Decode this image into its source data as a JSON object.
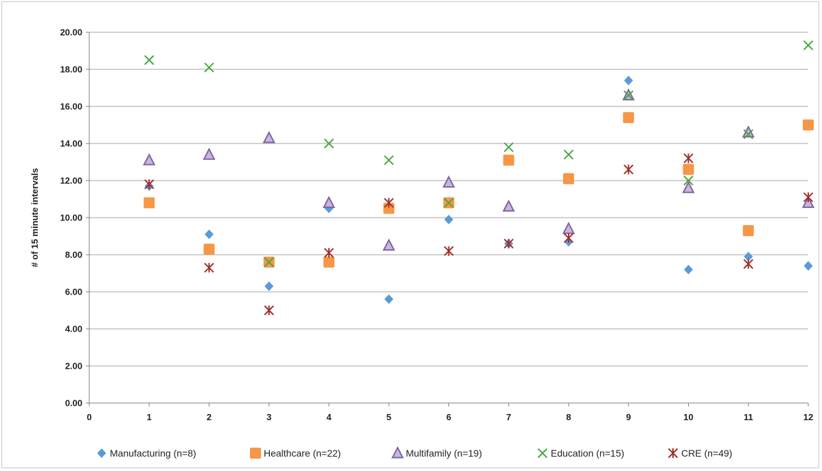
{
  "chart_data": {
    "type": "scatter",
    "title": "",
    "xlabel": "",
    "ylabel": "# of 15 minute intervals",
    "xlim": [
      0,
      12
    ],
    "ylim": [
      0,
      20
    ],
    "x_ticks": [
      "0",
      "1",
      "2",
      "3",
      "4",
      "5",
      "6",
      "7",
      "8",
      "9",
      "10",
      "11",
      "12"
    ],
    "y_ticks": [
      "0.00",
      "2.00",
      "4.00",
      "6.00",
      "8.00",
      "10.00",
      "12.00",
      "14.00",
      "16.00",
      "18.00",
      "20.00"
    ],
    "grid": "horizontal",
    "legend_position": "bottom",
    "x": [
      1,
      2,
      3,
      4,
      5,
      6,
      7,
      8,
      9,
      10,
      11,
      12
    ],
    "series": [
      {
        "name": "Manufacturing (n=8)",
        "marker": "diamond",
        "color": "#5b9bd5",
        "values": [
          11.7,
          9.1,
          6.3,
          10.5,
          5.6,
          9.9,
          8.6,
          8.7,
          17.4,
          7.2,
          7.9,
          7.4
        ]
      },
      {
        "name": "Healthcare (n=22)",
        "marker": "square",
        "color": "#f79646",
        "values": [
          10.8,
          8.3,
          7.6,
          7.6,
          10.5,
          10.8,
          13.1,
          12.1,
          15.4,
          12.6,
          9.3,
          15.0
        ]
      },
      {
        "name": "Multifamily (n=19)",
        "marker": "triangle",
        "color": "#8064a2",
        "values": [
          13.1,
          13.4,
          14.3,
          10.8,
          8.5,
          11.9,
          10.6,
          9.4,
          16.6,
          11.6,
          14.6,
          10.8
        ]
      },
      {
        "name": "Education (n=15)",
        "marker": "x",
        "color": "#4aa842",
        "values": [
          18.5,
          18.1,
          7.6,
          14.0,
          13.1,
          10.8,
          13.8,
          13.4,
          16.6,
          12.0,
          14.5,
          19.3
        ]
      },
      {
        "name": "CRE (n=49)",
        "marker": "star",
        "color": "#a0302c",
        "values": [
          11.8,
          7.3,
          5.0,
          8.1,
          10.8,
          8.2,
          8.6,
          8.9,
          12.6,
          13.2,
          7.5,
          11.1
        ]
      }
    ]
  }
}
